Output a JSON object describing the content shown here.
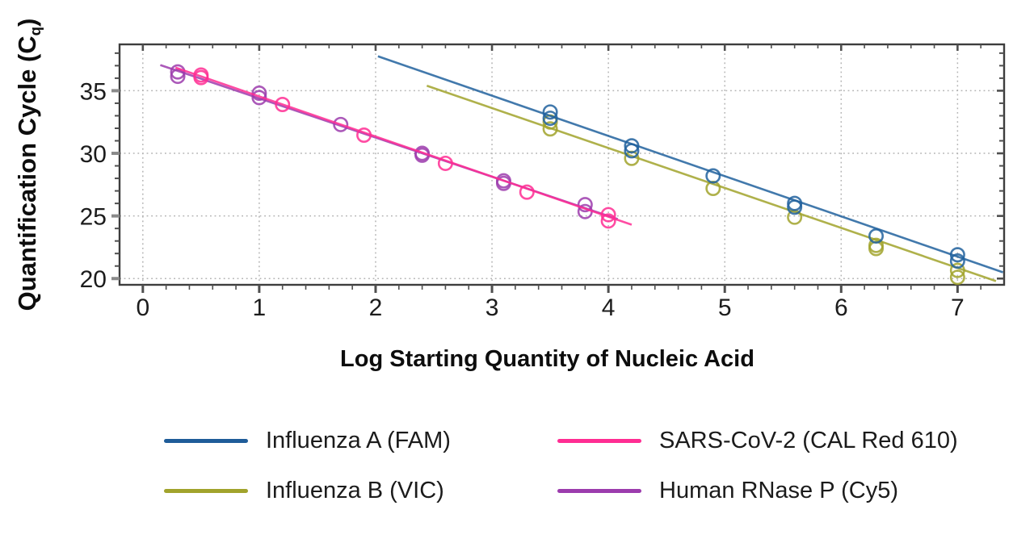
{
  "chart_data": {
    "type": "scatter",
    "title": "",
    "xlabel": "Log Starting Quantity of Nucleic Acid",
    "ylabel": "Quantification Cycle (Cq)",
    "ylabel_parts": {
      "main": "Quantification Cycle (C",
      "subscript": "q",
      "suffix": ")"
    },
    "xlim": [
      -0.2,
      7.4
    ],
    "ylim": [
      19.5,
      38.7
    ],
    "x_major_ticks": [
      0,
      1,
      2,
      3,
      4,
      5,
      6,
      7
    ],
    "x_minor_tick_step": 0.2,
    "y_major_ticks": [
      20,
      25,
      30,
      35
    ],
    "y_minor_tick_step": 1,
    "grid": {
      "style": "dotted",
      "color": "#b3b3b3",
      "x_at": [
        0,
        1,
        2,
        3,
        4,
        5,
        6,
        7
      ],
      "y_at": [
        20,
        25,
        30,
        35
      ]
    },
    "frame_color": "#3d3d3d",
    "tick_color": "#4f4f4f",
    "tick_label_color": "#1c1c1c",
    "legend_position": "below-chart, 2 columns",
    "series": [
      {
        "name": "Influenza A (FAM)",
        "color": "#21619E",
        "trendline": [
          [
            2.02,
            37.75
          ],
          [
            7.39,
            20.5
          ]
        ],
        "points": [
          [
            3.5,
            33.3
          ],
          [
            3.5,
            32.8
          ],
          [
            4.2,
            30.6
          ],
          [
            4.2,
            30.2
          ],
          [
            4.9,
            28.2
          ],
          [
            5.6,
            26.0
          ],
          [
            5.6,
            25.7
          ],
          [
            6.3,
            23.4
          ],
          [
            7.0,
            21.9
          ],
          [
            7.0,
            21.4
          ]
        ]
      },
      {
        "name": "SARS-CoV-2 (CAL Red 610)",
        "color": "#FF2D93",
        "trendline": [
          [
            0.28,
            36.85
          ],
          [
            4.2,
            24.3
          ]
        ],
        "points": [
          [
            0.5,
            36.25
          ],
          [
            0.5,
            36.05
          ],
          [
            1.2,
            33.9
          ],
          [
            1.9,
            31.45
          ],
          [
            2.6,
            29.2
          ],
          [
            3.3,
            26.9
          ],
          [
            4.0,
            25.1
          ],
          [
            4.0,
            24.6
          ]
        ]
      },
      {
        "name": "Influenza B (VIC)",
        "color": "#A1A32C",
        "trendline": [
          [
            2.44,
            35.4
          ],
          [
            7.33,
            19.8
          ]
        ],
        "points": [
          [
            3.5,
            32.5
          ],
          [
            3.5,
            31.95
          ],
          [
            4.2,
            29.6
          ],
          [
            4.9,
            27.2
          ],
          [
            5.6,
            24.9
          ],
          [
            6.3,
            22.65
          ],
          [
            6.3,
            22.4
          ],
          [
            7.0,
            20.65
          ],
          [
            7.0,
            20.1
          ]
        ]
      },
      {
        "name": "Human RNase P (Cy5)",
        "color": "#9C3CAD",
        "trendline": [
          [
            0.15,
            37.05
          ],
          [
            4.08,
            24.75
          ]
        ],
        "points": [
          [
            0.3,
            36.5
          ],
          [
            0.3,
            36.15
          ],
          [
            1.0,
            34.8
          ],
          [
            1.0,
            34.45
          ],
          [
            1.7,
            32.3
          ],
          [
            2.4,
            30.0
          ],
          [
            2.4,
            29.85
          ],
          [
            3.1,
            27.8
          ],
          [
            3.1,
            27.6
          ],
          [
            3.8,
            25.9
          ],
          [
            3.8,
            25.35
          ]
        ]
      }
    ]
  },
  "legend": {
    "items": [
      {
        "label": "Influenza A (FAM)",
        "color": "#1F5C99"
      },
      {
        "label": "SARS-CoV-2 (CAL Red 610)",
        "color": "#FF2D93"
      },
      {
        "label": "Influenza B (VIC)",
        "color": "#A1A32C"
      },
      {
        "label": "Human RNase P (Cy5)",
        "color": "#9C3CAD"
      }
    ]
  }
}
